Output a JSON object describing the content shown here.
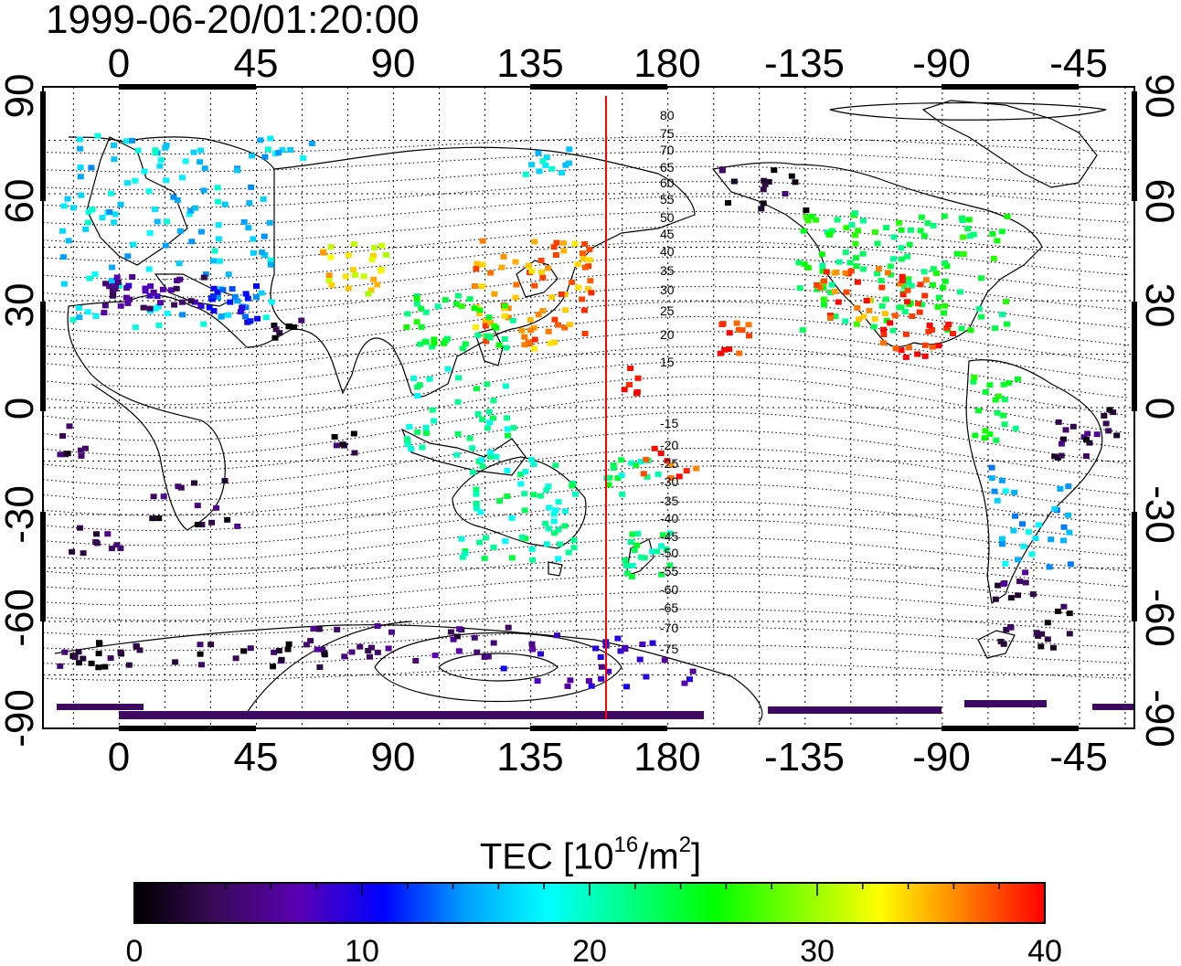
{
  "title": "1999-06-20/01:20:00",
  "map": {
    "lon_top_ticks": [
      "0",
      "45",
      "90",
      "135",
      "180",
      "-135",
      "-90",
      "-45"
    ],
    "lon_bottom_ticks": [
      "0",
      "45",
      "90",
      "135",
      "180",
      "-135",
      "-90",
      "-45"
    ],
    "lat_left_ticks": [
      "90",
      "60",
      "30",
      "0",
      "-30",
      "-60",
      "-90"
    ],
    "lat_right_ticks": [
      "90",
      "60",
      "30",
      "0",
      "-30",
      "-60",
      "-90"
    ],
    "contour_labels": [
      "80",
      "75",
      "70",
      "65",
      "60",
      "55",
      "50",
      "45",
      "40",
      "35",
      "30",
      "25",
      "20",
      "15",
      "-15",
      "-20",
      "-25",
      "-30",
      "-35",
      "-40",
      "-45",
      "-50",
      "-55",
      "-60",
      "-65",
      "-70",
      "-75"
    ],
    "terminator_color": "#ff0000"
  },
  "colorbar": {
    "label_main": "TEC  [10",
    "label_exp1": "16",
    "label_mid": "/m",
    "label_exp2": "2",
    "label_end": "]",
    "min": 0,
    "max": 40,
    "ticks": [
      "0",
      "10",
      "20",
      "30",
      "40"
    ],
    "colors": [
      "#000000",
      "#3a0a5a",
      "#5a00b4",
      "#0000ff",
      "#00a0ff",
      "#00ffff",
      "#00ff80",
      "#00ff00",
      "#80ff00",
      "#ffff00",
      "#ff8000",
      "#ff0000"
    ]
  }
}
